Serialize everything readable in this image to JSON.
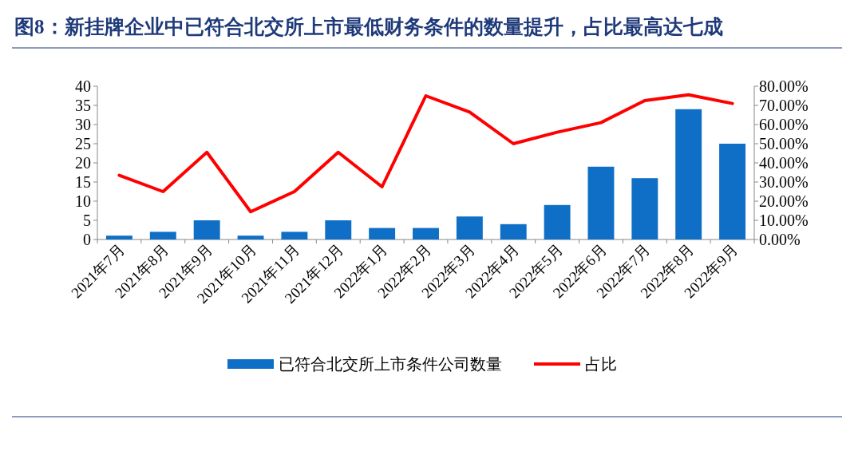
{
  "chart_data": {
    "type": "bar",
    "title": "图8：新挂牌企业中已符合北交所上市最低财务条件的数量提升，占比最高达七成",
    "categories": [
      "2021年7月",
      "2021年8月",
      "2021年9月",
      "2021年10月",
      "2021年11月",
      "2021年12月",
      "2022年1月",
      "2022年2月",
      "2022年3月",
      "2022年4月",
      "2022年5月",
      "2022年6月",
      "2022年7月",
      "2022年8月",
      "2022年9月"
    ],
    "series": [
      {
        "name": "已符合北交所上市条件公司数量",
        "color": "#0f6fc6",
        "values": [
          1,
          2,
          5,
          1,
          2,
          5,
          3,
          3,
          6,
          4,
          9,
          19,
          16,
          34,
          25
        ]
      },
      {
        "name": "占比",
        "type": "line",
        "axis": "y2",
        "color": "#ff0000",
        "values": [
          33.5,
          25,
          45.5,
          14.5,
          25,
          45.5,
          27.5,
          75,
          66.5,
          50,
          56,
          61,
          72.5,
          75.5,
          71
        ]
      }
    ],
    "ylim": [
      0,
      40
    ],
    "yticks": [
      0,
      5,
      10,
      15,
      20,
      25,
      30,
      35,
      40
    ],
    "y2lim": [
      0,
      80
    ],
    "y2ticks": [
      {
        "value": 0,
        "label": "0.00%"
      },
      {
        "value": 10,
        "label": "10.00%"
      },
      {
        "value": 20,
        "label": "20.00%"
      },
      {
        "value": 30,
        "label": "30.00%"
      },
      {
        "value": 40,
        "label": "40.00%"
      },
      {
        "value": 50,
        "label": "50.00%"
      },
      {
        "value": 60,
        "label": "60.00%"
      },
      {
        "value": 70,
        "label": "70.00%"
      },
      {
        "value": 80,
        "label": "80.00%"
      }
    ],
    "legend": "bottom"
  }
}
